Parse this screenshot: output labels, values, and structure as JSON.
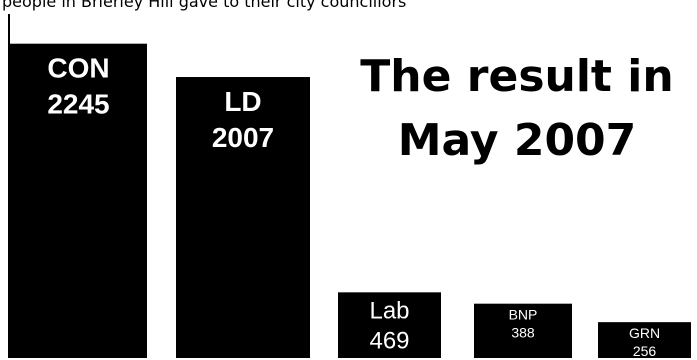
{
  "caption": "people in Brierley Hill gave to their city councillors",
  "chart_data": {
    "type": "bar",
    "title_lines": [
      "The result in",
      "May 2007"
    ],
    "categories": [
      "CON",
      "LD",
      "Lab",
      "BNP",
      "GRN"
    ],
    "values": [
      2245,
      2007,
      469,
      388,
      256
    ],
    "ylim": [
      0,
      2400
    ],
    "bar_color": "#000000",
    "label_color": "#ffffff",
    "xlabel": "",
    "ylabel": "",
    "grid": false,
    "legend": "none"
  }
}
